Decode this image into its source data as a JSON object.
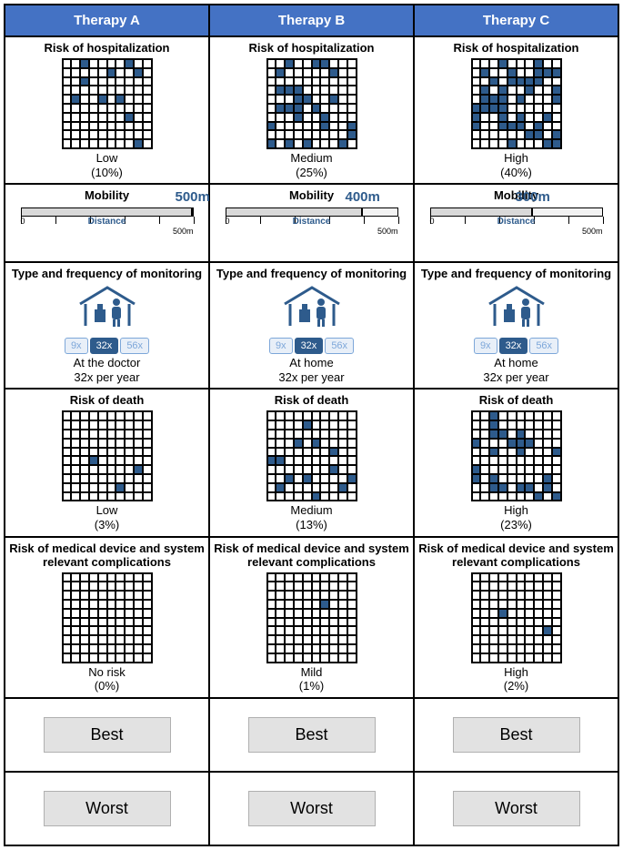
{
  "header_bg": "#4472c4",
  "fill_color": "#2e5b8c",
  "columns": [
    "Therapy A",
    "Therapy B",
    "Therapy C"
  ],
  "rows": {
    "hospitalization": {
      "title": "Risk of hospitalization",
      "data": [
        {
          "level": "Low",
          "pct": "(10%)",
          "filled": 10
        },
        {
          "level": "Medium",
          "pct": "(25%)",
          "filled": 25
        },
        {
          "level": "High",
          "pct": "(40%)",
          "filled": 40
        }
      ]
    },
    "mobility": {
      "title": "Mobility",
      "max": 500,
      "data": [
        {
          "value": 500,
          "label": "500m"
        },
        {
          "value": 400,
          "label": "400m"
        },
        {
          "value": 300,
          "label": "300m"
        }
      ],
      "distance_label": "Distance",
      "min_label": "0",
      "max_label": "500m"
    },
    "monitoring": {
      "title": "Type and frequency of monitoring",
      "freq_options": [
        "9x",
        "32x",
        "56x"
      ],
      "freq_active": 1,
      "data": [
        {
          "where": "At the doctor",
          "freq": "32x per year",
          "home": false
        },
        {
          "where": "At home",
          "freq": "32x per year",
          "home": true
        },
        {
          "where": "At home",
          "freq": "32x per year",
          "home": true
        }
      ]
    },
    "death": {
      "title": "Risk of death",
      "data": [
        {
          "level": "Low",
          "pct": "(3%)",
          "filled": 3
        },
        {
          "level": "Medium",
          "pct": "(13%)",
          "filled": 13
        },
        {
          "level": "High",
          "pct": "(23%)",
          "filled": 23
        }
      ]
    },
    "complications": {
      "title": "Risk of medical device and system relevant complications",
      "data": [
        {
          "level": "No risk",
          "pct": "(0%)",
          "filled": 0
        },
        {
          "level": "Mild",
          "pct": "(1%)",
          "filled": 1
        },
        {
          "level": "High",
          "pct": "(2%)",
          "filled": 2
        }
      ]
    }
  },
  "buttons": {
    "best": "Best",
    "worst": "Worst"
  }
}
